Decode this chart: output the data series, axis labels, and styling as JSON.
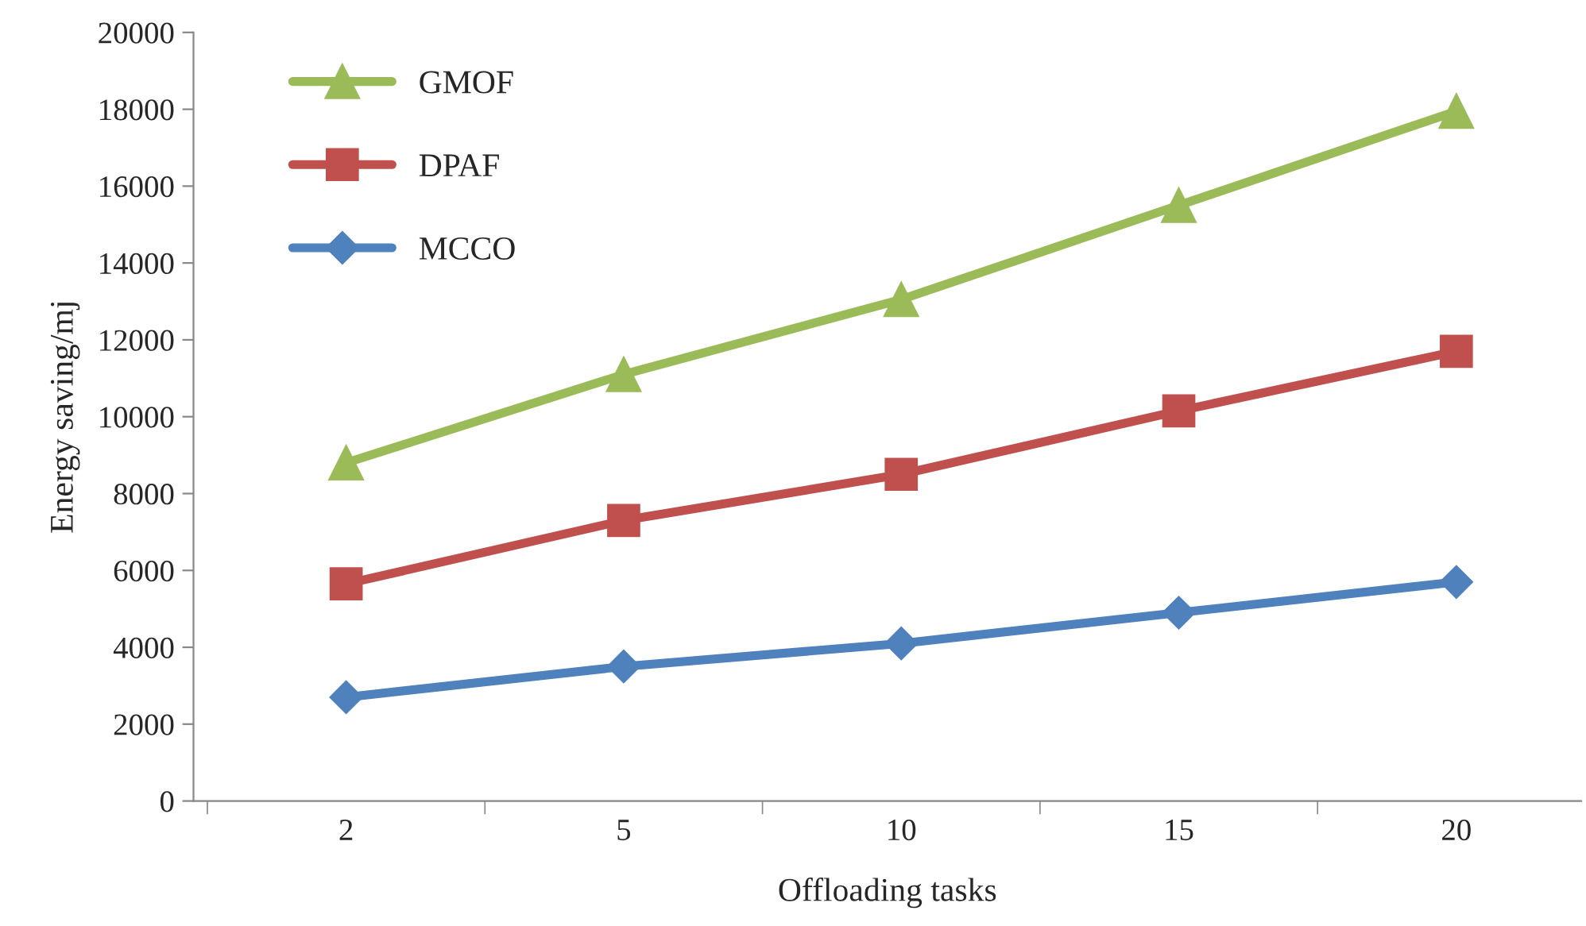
{
  "chart_data": {
    "type": "line",
    "xlabel": "Offloading tasks",
    "ylabel": "Energy saving/mj",
    "categories": [
      "2",
      "5",
      "10",
      "15",
      "20"
    ],
    "series": [
      {
        "name": "GMOF",
        "color": "#9bbb59",
        "marker": "triangle",
        "values": [
          8800,
          11100,
          13050,
          15500,
          17950
        ]
      },
      {
        "name": "DPAF",
        "color": "#c0504d",
        "marker": "square",
        "values": [
          5650,
          7300,
          8500,
          10150,
          11700
        ]
      },
      {
        "name": "MCCO",
        "color": "#4f81bd",
        "marker": "diamond",
        "values": [
          2700,
          3500,
          4100,
          4900,
          5700
        ]
      }
    ],
    "ylim": [
      0,
      20000
    ],
    "yticks": [
      0,
      2000,
      4000,
      6000,
      8000,
      10000,
      12000,
      14000,
      16000,
      18000,
      20000
    ],
    "grid": false,
    "legend": "top left"
  }
}
